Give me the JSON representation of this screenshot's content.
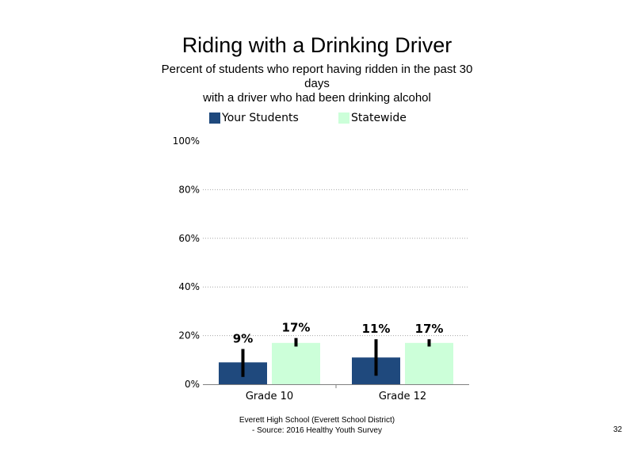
{
  "chart_data": {
    "type": "bar",
    "title": "Riding with a Drinking Driver",
    "subtitle_lines": [
      "Percent of students who report having ridden in the past 30",
      "days",
      "with a driver who had been drinking alcohol"
    ],
    "categories": [
      "Grade 10",
      "Grade 12"
    ],
    "series": [
      {
        "name": "Your Students",
        "color": "#1f497d",
        "values": [
          9,
          11
        ],
        "labels": [
          "9%",
          "11%"
        ],
        "error_low": [
          3,
          3.5
        ],
        "error_high": [
          14.5,
          18.5
        ]
      },
      {
        "name": "Statewide",
        "color": "#ccffd9",
        "values": [
          17,
          17
        ],
        "labels": [
          "17%",
          "17%"
        ],
        "error_low": [
          15.5,
          15.5
        ],
        "error_high": [
          19,
          18.5
        ]
      }
    ],
    "y_ticks": [
      0,
      20,
      40,
      60,
      80,
      100
    ],
    "y_tick_labels": [
      "0%",
      "20%",
      "40%",
      "60%",
      "80%",
      "100%"
    ],
    "ylim": [
      0,
      100
    ],
    "grid": true,
    "legend_position": "top"
  },
  "footer": {
    "line1": "Everett High School (Everett School District)",
    "line2": "- Source: 2016 Healthy Youth Survey"
  },
  "page_number": "32"
}
